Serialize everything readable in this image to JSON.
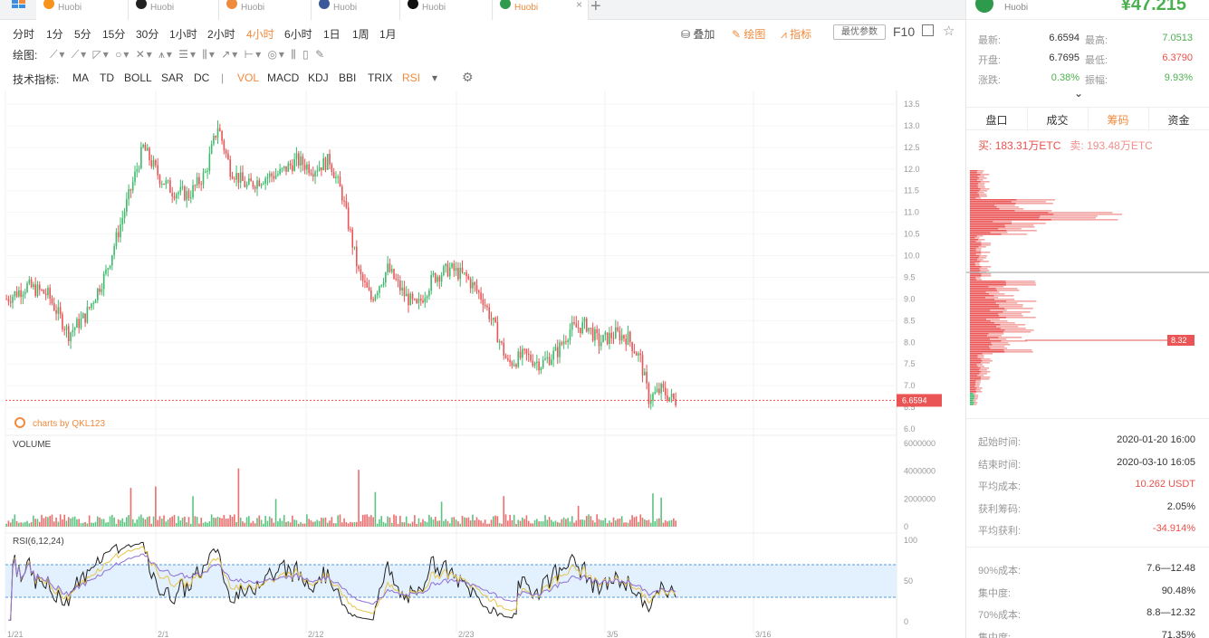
{
  "tabs": [
    {
      "name": "Huobi",
      "color": "#f7931a",
      "active": false
    },
    {
      "name": "Huobi",
      "color": "#222222",
      "active": false
    },
    {
      "name": "Huobi",
      "color": "#f08a3c",
      "active": false
    },
    {
      "name": "Huobi",
      "color": "#3b5998",
      "active": false
    },
    {
      "name": "Huobi",
      "color": "#111111",
      "active": false
    },
    {
      "name": "Huobi",
      "color": "#2e9a4b",
      "active": true
    }
  ],
  "periods": [
    "分时",
    "1分",
    "5分",
    "15分",
    "30分",
    "1小时",
    "2小时",
    "4小时",
    "6小时",
    "1日",
    "1周",
    "1月"
  ],
  "active_period": "4小时",
  "toolbar": {
    "overlay": "叠加",
    "draw": "绘图",
    "indicator": "指标",
    "best_params": "最优参数",
    "f10": "F10",
    "draw_label": "绘图:",
    "tech_label": "技术指标:",
    "indicators_main": [
      "MA",
      "TD",
      "BOLL",
      "SAR",
      "DC"
    ],
    "indicators_sub": [
      "VOL",
      "MACD",
      "KDJ",
      "BBI",
      "TRIX",
      "RSI"
    ],
    "separator": "|"
  },
  "chart_data": {
    "type": "candlestick",
    "watermark": "charts by QKL123",
    "price_axis": [
      "13.5",
      "13.0",
      "12.5",
      "12.0",
      "11.5",
      "11.0",
      "10.5",
      "10.0",
      "9.5",
      "9.0",
      "8.5",
      "8.0",
      "7.5",
      "7.0",
      "6.5",
      "6.0"
    ],
    "ylim": [
      6.0,
      13.5
    ],
    "current_price": "6.6594",
    "volume_label": "VOLUME",
    "volume_axis": [
      "6000000",
      "4000000",
      "2000000",
      "0"
    ],
    "rsi_label": "RSI(6,12,24)",
    "rsi_axis": [
      "100",
      "50",
      "0"
    ],
    "rsi_bands": [
      30,
      70
    ],
    "x_axis": [
      "1/21",
      "2/1",
      "2/12",
      "2/23",
      "3/5",
      "3/16"
    ],
    "price_anchors": [
      [
        0,
        9.0
      ],
      [
        10,
        9.3
      ],
      [
        20,
        9.1
      ],
      [
        30,
        8.2
      ],
      [
        38,
        8.6
      ],
      [
        48,
        9.6
      ],
      [
        58,
        11.2
      ],
      [
        66,
        12.5
      ],
      [
        74,
        11.8
      ],
      [
        80,
        11.5
      ],
      [
        88,
        11.4
      ],
      [
        96,
        11.9
      ],
      [
        102,
        13.0
      ],
      [
        108,
        12.0
      ],
      [
        116,
        11.6
      ],
      [
        124,
        11.8
      ],
      [
        132,
        11.9
      ],
      [
        140,
        12.2
      ],
      [
        148,
        12.0
      ],
      [
        156,
        12.2
      ],
      [
        162,
        11.4
      ],
      [
        170,
        9.6
      ],
      [
        176,
        9.0
      ],
      [
        184,
        9.7
      ],
      [
        192,
        9.1
      ],
      [
        198,
        8.8
      ],
      [
        206,
        9.5
      ],
      [
        214,
        9.7
      ],
      [
        222,
        9.5
      ],
      [
        230,
        9.0
      ],
      [
        236,
        8.3
      ],
      [
        242,
        7.5
      ],
      [
        250,
        7.7
      ],
      [
        258,
        7.5
      ],
      [
        266,
        7.8
      ],
      [
        272,
        8.3
      ],
      [
        280,
        8.4
      ],
      [
        286,
        8.0
      ],
      [
        294,
        8.2
      ],
      [
        300,
        8.1
      ],
      [
        306,
        7.6
      ],
      [
        310,
        6.7
      ],
      [
        316,
        6.9
      ],
      [
        322,
        6.66
      ]
    ],
    "volume_spikes": [
      [
        60,
        2800000
      ],
      [
        72,
        2900000
      ],
      [
        90,
        2200000
      ],
      [
        112,
        4200000
      ],
      [
        130,
        2000000
      ],
      [
        170,
        4100000
      ],
      [
        178,
        2500000
      ],
      [
        210,
        1800000
      ],
      [
        240,
        2200000
      ],
      [
        276,
        1500000
      ],
      [
        312,
        2400000
      ],
      [
        316,
        2100000
      ]
    ]
  },
  "right_panel": {
    "exchange": "Huobi",
    "price": "¥47.215",
    "stats": [
      {
        "label": "最新:",
        "value": "6.6594",
        "color": "#333333"
      },
      {
        "label": "最高:",
        "value": "7.0513",
        "color": "#4cb050"
      },
      {
        "label": "开盘:",
        "value": "6.7695",
        "color": "#333333"
      },
      {
        "label": "最低:",
        "value": "6.3790",
        "color": "#e9514b"
      },
      {
        "label": "涨跌:",
        "value": "0.38%",
        "color": "#4cb050"
      },
      {
        "label": "振幅:",
        "value": "9.93%",
        "color": "#4cb050"
      }
    ],
    "tabs": [
      "盘口",
      "成交",
      "筹码",
      "资金"
    ],
    "active_tab": "筹码",
    "buy_label": "买:",
    "buy_value": "183.31万ETC",
    "sell_label": "卖:",
    "sell_value": "193.48万ETC",
    "chip_marker": "8.32",
    "info_1": [
      {
        "label": "起始时间:",
        "value": "2020-01-20 16:00",
        "red": false
      },
      {
        "label": "结束时间:",
        "value": "2020-03-10 16:05",
        "red": false
      },
      {
        "label": "平均成本:",
        "value": "10.262 USDT",
        "red": true
      },
      {
        "label": "获利筹码:",
        "value": "2.05%",
        "red": false
      },
      {
        "label": "平均获利:",
        "value": "-34.914%",
        "red": true
      }
    ],
    "info_2": [
      {
        "label": "90%成本:",
        "value": "7.6—12.48",
        "red": false
      },
      {
        "label": "集中度:",
        "value": "90.48%",
        "red": false
      },
      {
        "label": "70%成本:",
        "value": "8.8—12.32",
        "red": false
      },
      {
        "label": "集中度:",
        "value": "71.35%",
        "red": false
      }
    ]
  }
}
